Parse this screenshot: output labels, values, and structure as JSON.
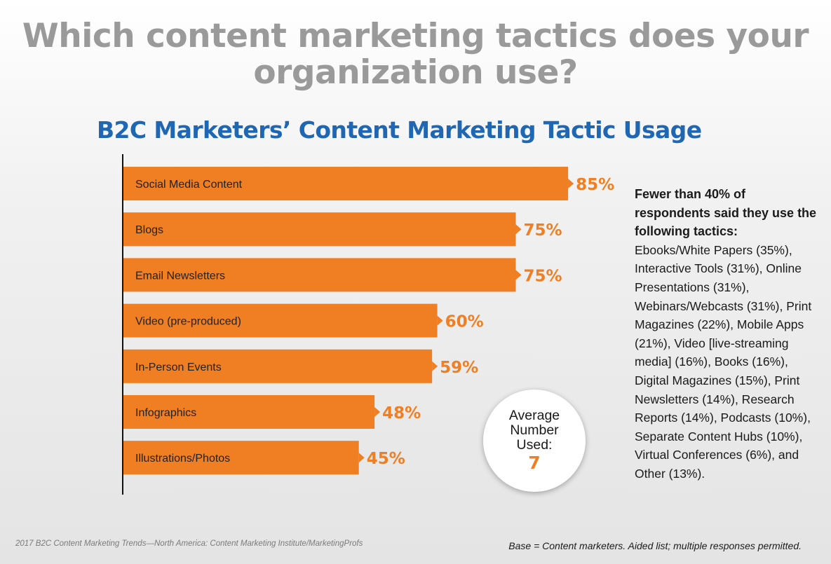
{
  "headline": "Which content marketing tactics does your organization use?",
  "chart_data": {
    "type": "bar",
    "orientation": "horizontal",
    "title": "B2C Marketers’ Content Marketing Tactic Usage",
    "categories": [
      "Social Media Content",
      "Blogs",
      "Email Newsletters",
      "Video (pre-produced)",
      "In-Person Events",
      "Infographics",
      "Illustrations/Photos"
    ],
    "values": [
      85,
      75,
      75,
      60,
      59,
      48,
      45
    ],
    "value_labels": [
      "85%",
      "75%",
      "75%",
      "60%",
      "59%",
      "48%",
      "45%"
    ],
    "xlim": [
      0,
      100
    ],
    "grid": false,
    "bar_color": "#f07e22"
  },
  "average": {
    "label": "Average Number Used:",
    "value": "7"
  },
  "side_note": {
    "lead": "Fewer than 40% of respondents said they use the following tactics:",
    "body": "Ebooks/White Papers (35%), Interactive Tools (31%), Online Presentations (31%), Webinars/Webcasts (31%), Print Magazines (22%), Mobile Apps (21%), Video [live-streaming media] (16%), Books (16%), Digital Magazines (15%), Print Newsletters (14%), Research Reports (14%), Podcasts (10%), Separate Content Hubs (10%), Virtual Conferences (6%), and Other (13%)."
  },
  "footer": {
    "source": "2017 B2C Content Marketing Trends—North America: Content Marketing Institute/MarketingProfs",
    "base": "Base = Content marketers. Aided list; multiple responses permitted."
  },
  "colors": {
    "accent": "#f07e22",
    "subtitle": "#2067b3",
    "headline": "#9a9a9a"
  }
}
